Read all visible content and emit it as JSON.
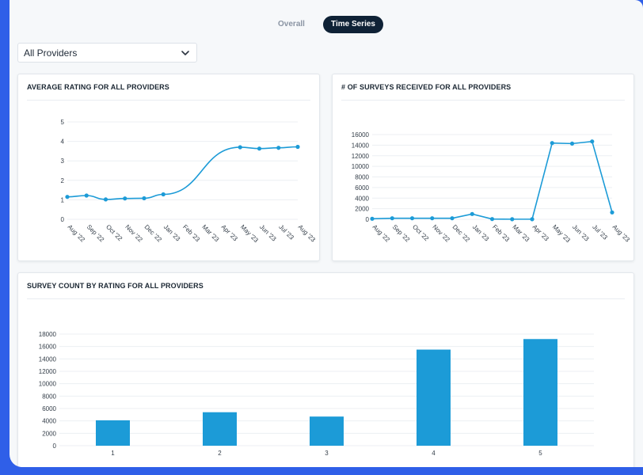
{
  "tabs": {
    "overall": "Overall",
    "time_series": "Time Series"
  },
  "filter": {
    "selected": "All Providers"
  },
  "colors": {
    "accent": "#1c9bd7",
    "tab_active": "#0f2236",
    "frame_border": "#2f5fe8"
  },
  "cards": {
    "avg_rating_title": "AVERAGE RATING FOR ALL PROVIDERS",
    "surveys_title": "# OF SURVEYS RECEIVED FOR ALL PROVIDERS",
    "count_by_rating_title": "SURVEY COUNT BY RATING FOR ALL PROVIDERS"
  },
  "chart_data": [
    {
      "type": "line",
      "title": "AVERAGE RATING FOR ALL PROVIDERS",
      "x": [
        "Aug '22",
        "Sep '22",
        "Oct '22",
        "Nov '22",
        "Dec '22",
        "Jan '23",
        "Feb '23",
        "Mar '23",
        "Apr '23",
        "May '23",
        "Jun '23",
        "Jul '23",
        "Aug '23"
      ],
      "points": [
        [
          "Aug '22",
          1.15
        ],
        [
          "Sep '22",
          1.22
        ],
        [
          "Oct '22",
          1.02
        ],
        [
          "Nov '22",
          1.07
        ],
        [
          "Dec '22",
          1.08
        ],
        [
          "Jan '23",
          1.28
        ],
        [
          "May '23",
          3.7
        ],
        [
          "Jun '23",
          3.63
        ],
        [
          "Jul '23",
          3.67
        ],
        [
          "Aug '23",
          3.72
        ]
      ],
      "yticks": [
        0,
        1,
        2,
        3,
        4,
        5
      ],
      "ylim": [
        0,
        5
      ],
      "grid": true
    },
    {
      "type": "line",
      "title": "# OF SURVEYS RECEIVED FOR ALL PROVIDERS",
      "x": [
        "Aug '22",
        "Sep '22",
        "Oct '22",
        "Nov '22",
        "Dec '22",
        "Jan '23",
        "Feb '23",
        "Mar '23",
        "Apr '23",
        "May '23",
        "Jun '23",
        "Jul '23",
        "Aug '23"
      ],
      "values": [
        100,
        200,
        200,
        200,
        200,
        1000,
        50,
        20,
        20,
        14400,
        14300,
        14700,
        1300
      ],
      "yticks": [
        0,
        2000,
        4000,
        6000,
        8000,
        10000,
        12000,
        14000,
        16000
      ],
      "ylim": [
        0,
        16000
      ],
      "grid": true
    },
    {
      "type": "bar",
      "title": "SURVEY COUNT BY RATING FOR ALL PROVIDERS",
      "categories": [
        "1",
        "2",
        "3",
        "4",
        "5"
      ],
      "values": [
        4100,
        5400,
        4700,
        15500,
        17200
      ],
      "yticks": [
        0,
        2000,
        4000,
        6000,
        8000,
        10000,
        12000,
        14000,
        16000,
        18000
      ],
      "ylim": [
        0,
        18000
      ],
      "grid": true
    }
  ]
}
